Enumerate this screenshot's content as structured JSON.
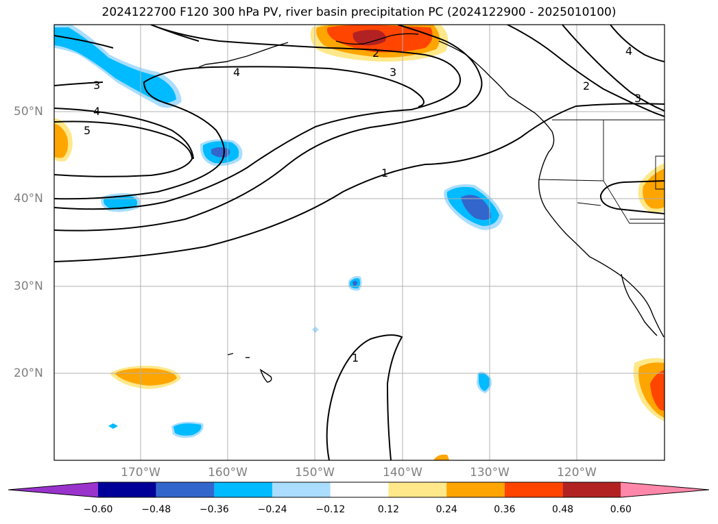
{
  "title": "2024122700 F120 300 hPa PV, river basin precipitation PC (2024122900 - 2025010100)",
  "map": {
    "lon_labels": [
      "170°W",
      "160°W",
      "150°W",
      "140°W",
      "130°W",
      "120°W"
    ],
    "lat_labels": [
      "50°N",
      "40°N",
      "30°N",
      "20°N"
    ],
    "contour_labels": [
      "2",
      "3",
      "4",
      "4",
      "3",
      "4",
      "5",
      "1",
      "1",
      "2",
      "3"
    ]
  },
  "colorbar": {
    "ticks": [
      "−0.60",
      "−0.48",
      "−0.36",
      "−0.24",
      "−0.12",
      "0.12",
      "0.24",
      "0.36",
      "0.48",
      "0.60"
    ],
    "colors": [
      "#9933cc",
      "#000099",
      "#3366cc",
      "#00bbff",
      "#aaddff",
      "#ffffff",
      "#ffe88a",
      "#ffa500",
      "#ff4500",
      "#b22222",
      "#ff88aa"
    ]
  },
  "colors": {
    "grid": "#b0b0b0",
    "contour": "#000000",
    "tick_label": "#7f7f7f"
  }
}
